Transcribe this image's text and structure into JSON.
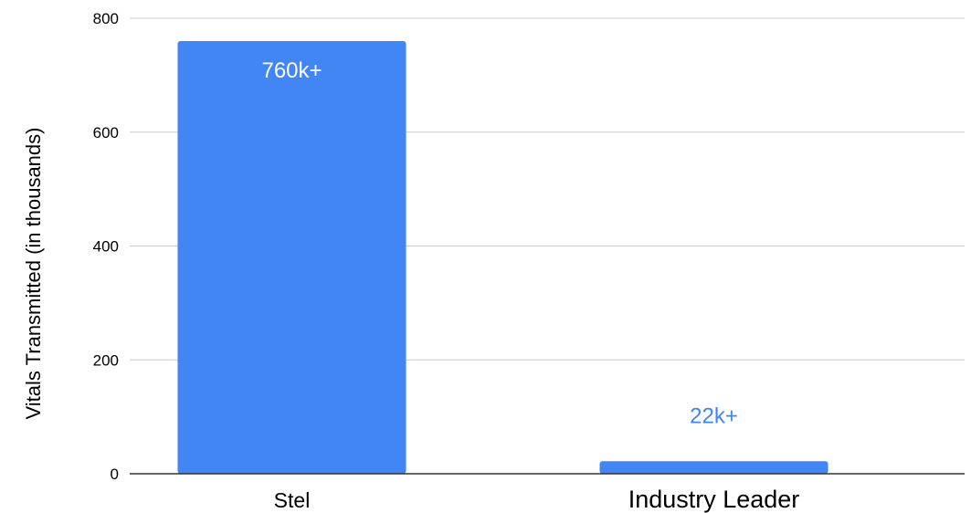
{
  "chart_data": {
    "type": "bar",
    "title": "",
    "xlabel": "",
    "ylabel": "Vitals Transmitted (in thousands)",
    "categories": [
      "Stel",
      "Industry Leader"
    ],
    "values": [
      760,
      22
    ],
    "data_labels": [
      "760k+",
      "22k+"
    ],
    "ylim": [
      0,
      800
    ],
    "yticks": [
      0,
      200,
      400,
      600,
      800
    ],
    "grid": true,
    "legend": "none",
    "bar_color": "#4285f4",
    "inside_label_color": "#ffffff",
    "outside_label_color": "#4285f4"
  }
}
